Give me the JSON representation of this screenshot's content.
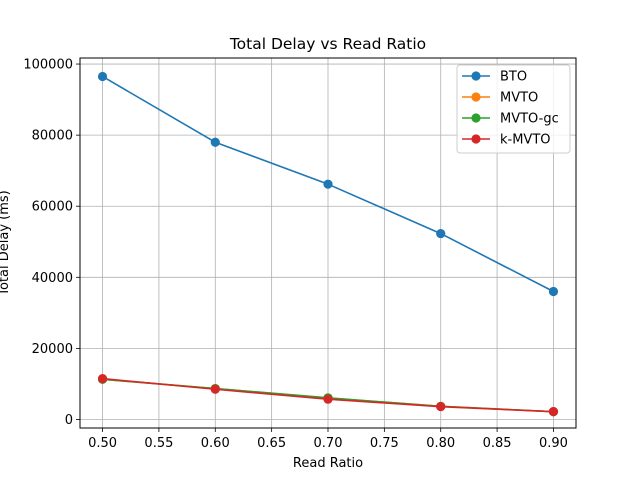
{
  "chart_data": {
    "type": "line",
    "title": "Total Delay vs Read Ratio",
    "xlabel": "Read Ratio",
    "ylabel": "Total Delay (ms)",
    "x": [
      0.5,
      0.6,
      0.7,
      0.8,
      0.9
    ],
    "xlim": [
      0.48,
      0.92
    ],
    "ylim": [
      -2400,
      101700
    ],
    "xticks": [
      0.5,
      0.55,
      0.6,
      0.65,
      0.7,
      0.75,
      0.8,
      0.85,
      0.9
    ],
    "xtick_labels": [
      "0.50",
      "0.55",
      "0.60",
      "0.65",
      "0.70",
      "0.75",
      "0.80",
      "0.85",
      "0.90"
    ],
    "yticks": [
      0,
      20000,
      40000,
      60000,
      80000,
      100000
    ],
    "ytick_labels": [
      "0",
      "20000",
      "40000",
      "60000",
      "80000",
      "100000"
    ],
    "grid": true,
    "legend_position": "top-right",
    "series": [
      {
        "name": "BTO",
        "color": "#1f77b4",
        "values": [
          96500,
          78000,
          66200,
          52300,
          36000
        ]
      },
      {
        "name": "MVTO",
        "color": "#ff7f0e",
        "values": [
          11300,
          8700,
          6000,
          3700,
          2200
        ]
      },
      {
        "name": "MVTO-gc",
        "color": "#2ca02c",
        "values": [
          11300,
          8700,
          6100,
          3700,
          2200
        ]
      },
      {
        "name": "k-MVTO",
        "color": "#d62728",
        "values": [
          11500,
          8500,
          5700,
          3600,
          2200
        ]
      }
    ]
  }
}
